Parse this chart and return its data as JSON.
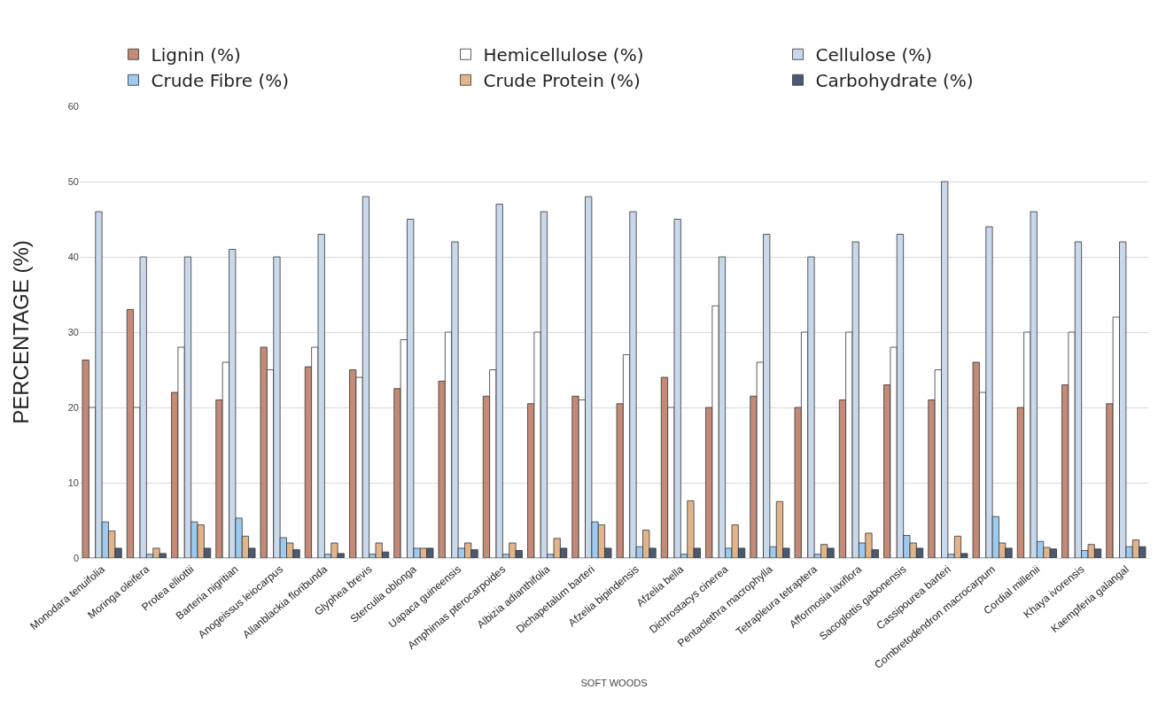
{
  "chart_data": {
    "type": "bar",
    "xlabel": "SOFT WOODS",
    "ylabel": "PERCENTAGE (%)",
    "categories": [
      "Monodara tenuifolia",
      "Moringa oleifera",
      "Protea elliottii",
      "Barteria nigritian",
      "Anogeissus leiocarpus",
      "Allanblackia floribunda",
      "Glyphea brevis",
      "Sterculia oblonga",
      "Uapaca guineensis",
      "Amphimas pterocarpoides",
      "Albizia adianthifolia",
      "Dichapetalum barteri",
      "Afzelia bipindensis",
      "Afzelia bella",
      "Dichrostacys cinerea",
      "Pentaclethra macrophylla",
      "Tetrapleura tetraptera",
      "Afformosia laxiflora",
      "Sacoglottis gabonensis",
      "Cassipourea barteri",
      "Combretodendron macrocarpum",
      "Cordial millenii",
      "Khaya ivorensis",
      "Kaempferia galangal"
    ],
    "series": [
      {
        "name": "Lignin (%)",
        "color": "#c48a78",
        "values": [
          26.3,
          33,
          22,
          21,
          28,
          25.4,
          25,
          22.5,
          23.5,
          21.5,
          20.5,
          21.5,
          20.5,
          24,
          20,
          21.5,
          20,
          21,
          23,
          21,
          26,
          20,
          23,
          20.5
        ]
      },
      {
        "name": "Hemicellulose (%)",
        "color": "#ffffff",
        "values": [
          20,
          20,
          28,
          26,
          25,
          28,
          24,
          29,
          30,
          25,
          30,
          21,
          27,
          20,
          33.5,
          26,
          30,
          30,
          28,
          25,
          22,
          30,
          30,
          32
        ]
      },
      {
        "name": "Cellulose (%)",
        "color": "#c9d8ea",
        "values": [
          46,
          40,
          40,
          41,
          40,
          43,
          48,
          45,
          42,
          47,
          46,
          48,
          46,
          45,
          40,
          43,
          40,
          42,
          43,
          50,
          44,
          46,
          42,
          42
        ]
      },
      {
        "name": "Crude Fibre (%)",
        "color": "#9ccaf0",
        "values": [
          4.8,
          0.5,
          4.8,
          5.3,
          2.7,
          0.5,
          0.5,
          1.3,
          1.3,
          0.5,
          0.5,
          4.8,
          1.5,
          0.5,
          1.3,
          1.5,
          0.5,
          2,
          3,
          0.5,
          5.5,
          2.2,
          1,
          1.5
        ]
      },
      {
        "name": "Crude Protein (%)",
        "color": "#e2b48a",
        "values": [
          3.6,
          1.3,
          4.4,
          2.9,
          2,
          2,
          2,
          1.3,
          2,
          2,
          2.6,
          4.4,
          3.7,
          7.6,
          4.4,
          7.5,
          1.8,
          3.3,
          2,
          2.9,
          2,
          1.4,
          1.8,
          2.4
        ]
      },
      {
        "name": "Carbohydrate (%)",
        "color": "#4a5a72",
        "values": [
          1.3,
          0.6,
          1.3,
          1.3,
          1.1,
          0.6,
          0.8,
          1.3,
          1.1,
          1,
          1.3,
          1.3,
          1.3,
          1.3,
          1.3,
          1.3,
          1.3,
          1.1,
          1.3,
          0.6,
          1.3,
          1.2,
          1.2,
          1.5
        ]
      }
    ],
    "ylim": [
      0,
      60
    ],
    "yticks": [
      0,
      10,
      20,
      30,
      40,
      50,
      60
    ],
    "grid": "y",
    "legend": "top"
  }
}
